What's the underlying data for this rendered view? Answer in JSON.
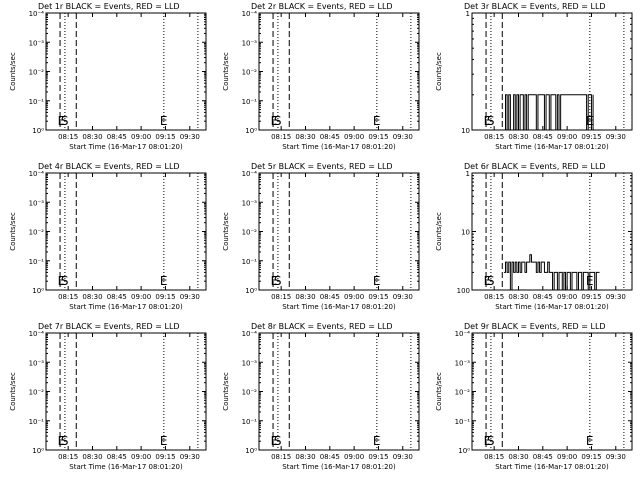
{
  "panel_grid": {
    "cols": 3,
    "rows": 3
  },
  "colors": {
    "background": "#ffffff",
    "axes": "#000000",
    "data": "#000000"
  },
  "chart_data": [
    {
      "type": "line",
      "title": "Det 1r BLACK = Events, RED = LLD",
      "xlabel": "Start Time (16-Mar-17 08:01:20)",
      "ylabel": "Counts/sec",
      "y_scale": "log",
      "y_ticks": [
        "10⁰",
        "10⁻¹",
        "10⁻²",
        "10⁻³",
        "10⁻⁴"
      ],
      "x_ticks": [
        "08:15",
        "08:30",
        "08:45",
        "09:00",
        "09:15",
        "09:30"
      ],
      "x_range": [
        "08:01:20",
        "09:40"
      ],
      "markers": [
        {
          "label": "E",
          "t": "08:11"
        },
        {
          "label": "S",
          "t": "08:13"
        },
        {
          "label": "E",
          "t": "09:14"
        }
      ],
      "dashed_lines": [
        "08:10",
        "08:20"
      ],
      "dotted_lines": [
        "08:13",
        "09:14",
        "09:35"
      ],
      "series": []
    },
    {
      "type": "line",
      "title": "Det 2r BLACK = Events, RED = LLD",
      "xlabel": "Start Time (16-Mar-17 08:01:20)",
      "ylabel": "Counts/sec",
      "y_scale": "log",
      "y_ticks": [
        "10⁰",
        "10⁻¹",
        "10⁻²",
        "10⁻³",
        "10⁻⁴"
      ],
      "x_ticks": [
        "08:15",
        "08:30",
        "08:45",
        "09:00",
        "09:15",
        "09:30"
      ],
      "x_range": [
        "08:01:20",
        "09:40"
      ],
      "markers": [
        {
          "label": "E",
          "t": "08:11"
        },
        {
          "label": "S",
          "t": "08:13"
        },
        {
          "label": "E",
          "t": "09:14"
        }
      ],
      "dashed_lines": [
        "08:10",
        "08:20"
      ],
      "dotted_lines": [
        "08:13",
        "09:14",
        "09:35"
      ],
      "series": []
    },
    {
      "type": "line",
      "title": "Det 3r BLACK = Events, RED = LLD",
      "xlabel": "Start Time (16-Mar-17 08:01:20)",
      "ylabel": "Counts/sec",
      "y_scale": "log",
      "y_ticks": [
        "10",
        "1"
      ],
      "x_ticks": [
        "08:15",
        "08:30",
        "08:45",
        "09:00",
        "09:15",
        "09:30"
      ],
      "x_range": [
        "08:01:20",
        "09:40"
      ],
      "markers": [
        {
          "label": "E",
          "t": "08:11"
        },
        {
          "label": "S",
          "t": "08:13"
        },
        {
          "label": "E",
          "t": "09:14"
        }
      ],
      "dashed_lines": [
        "08:10",
        "08:20"
      ],
      "dotted_lines": [
        "08:13",
        "09:14",
        "09:35"
      ],
      "series": [
        {
          "x": [
            "08:21",
            "08:22",
            "08:23",
            "08:24",
            "08:25",
            "08:26",
            "08:27",
            "08:28",
            "08:29",
            "08:30",
            "08:31",
            "08:32",
            "08:33",
            "08:34",
            "08:35",
            "08:36",
            "08:37",
            "08:38",
            "08:39",
            "08:40",
            "08:41",
            "08:42",
            "08:43",
            "08:44",
            "08:45",
            "08:46",
            "08:47",
            "08:48",
            "08:49",
            "08:50",
            "08:51",
            "08:52",
            "08:53",
            "08:54",
            "08:55",
            "08:56",
            "09:12",
            "09:13",
            "09:14",
            "09:15",
            "09:16"
          ],
          "values": [
            1,
            2,
            1,
            2,
            1,
            1,
            2,
            1,
            2,
            1,
            2,
            2,
            1,
            2,
            1,
            2,
            2,
            2,
            2,
            2,
            1,
            2,
            2,
            2,
            2,
            1,
            2,
            2,
            1,
            2,
            2,
            2,
            1,
            2,
            1,
            2,
            1,
            2,
            2,
            1,
            2
          ]
        }
      ]
    },
    {
      "type": "line",
      "title": "Det 4r BLACK = Events, RED = LLD",
      "xlabel": "Start Time (16-Mar-17 08:01:20)",
      "ylabel": "Counts/sec",
      "y_scale": "log",
      "y_ticks": [
        "10⁰",
        "10⁻¹",
        "10⁻²",
        "10⁻³",
        "10⁻⁴"
      ],
      "x_ticks": [
        "08:15",
        "08:30",
        "08:45",
        "09:00",
        "09:15",
        "09:30"
      ],
      "x_range": [
        "08:01:20",
        "09:40"
      ],
      "markers": [
        {
          "label": "E",
          "t": "08:11"
        },
        {
          "label": "S",
          "t": "08:13"
        },
        {
          "label": "E",
          "t": "09:14"
        }
      ],
      "dashed_lines": [
        "08:10",
        "08:20"
      ],
      "dotted_lines": [
        "08:13",
        "09:14",
        "09:35"
      ],
      "series": []
    },
    {
      "type": "line",
      "title": "Det 5r BLACK = Events, RED = LLD",
      "xlabel": "Start Time (16-Mar-17 08:01:20)",
      "ylabel": "Counts/sec",
      "y_scale": "log",
      "y_ticks": [
        "10⁰",
        "10⁻¹",
        "10⁻²",
        "10⁻³",
        "10⁻⁴"
      ],
      "x_ticks": [
        "08:15",
        "08:30",
        "08:45",
        "09:00",
        "09:15",
        "09:30"
      ],
      "x_range": [
        "08:01:20",
        "09:40"
      ],
      "markers": [
        {
          "label": "E",
          "t": "08:11"
        },
        {
          "label": "S",
          "t": "08:13"
        },
        {
          "label": "E",
          "t": "09:14"
        }
      ],
      "dashed_lines": [
        "08:10",
        "08:20"
      ],
      "dotted_lines": [
        "08:13",
        "09:14",
        "09:35"
      ],
      "series": []
    },
    {
      "type": "line",
      "title": "Det 6r BLACK = Events, RED = LLD",
      "xlabel": "Start Time (16-Mar-17 08:01:20)",
      "ylabel": "Counts/sec",
      "y_scale": "log",
      "y_ticks": [
        "100",
        "10",
        "1"
      ],
      "x_ticks": [
        "08:15",
        "08:30",
        "08:45",
        "09:00",
        "09:15",
        "09:30"
      ],
      "x_range": [
        "08:01:20",
        "09:40"
      ],
      "markers": [
        {
          "label": "E",
          "t": "08:11"
        },
        {
          "label": "S",
          "t": "08:13"
        },
        {
          "label": "E",
          "t": "09:14"
        }
      ],
      "dashed_lines": [
        "08:10",
        "08:20"
      ],
      "dotted_lines": [
        "08:13",
        "09:14",
        "09:35"
      ],
      "series": [
        {
          "x": [
            "08:21",
            "08:22",
            "08:23",
            "08:24",
            "08:25",
            "08:26",
            "08:27",
            "08:28",
            "08:29",
            "08:30",
            "08:31",
            "08:32",
            "08:33",
            "08:34",
            "08:35",
            "08:36",
            "08:37",
            "08:38",
            "08:39",
            "08:40",
            "08:41",
            "08:42",
            "08:43",
            "08:44",
            "08:45",
            "08:46",
            "08:47",
            "08:48",
            "08:49",
            "08:50",
            "08:51",
            "08:52",
            "08:53",
            "08:54",
            "08:55",
            "08:56",
            "08:57",
            "08:58",
            "08:59",
            "09:00",
            "09:01",
            "09:02",
            "09:03",
            "09:04",
            "09:05",
            "09:06",
            "09:07",
            "09:08",
            "09:09",
            "09:10",
            "09:11",
            "09:12",
            "09:13",
            "09:14",
            "09:15",
            "09:16",
            "09:17",
            "09:18",
            "09:19",
            "09:20"
          ],
          "values": [
            2,
            3,
            2,
            3,
            1,
            3,
            2,
            3,
            2,
            3,
            2,
            3,
            3,
            2,
            3,
            3,
            4,
            3,
            3,
            3,
            2,
            3,
            2,
            3,
            3,
            2,
            2,
            3,
            2,
            2,
            1,
            2,
            2,
            1,
            2,
            2,
            1,
            2,
            1,
            2,
            2,
            1,
            2,
            2,
            2,
            1,
            2,
            2,
            1,
            2,
            2,
            2,
            1,
            2,
            2,
            2,
            1,
            2,
            2,
            2
          ]
        }
      ]
    },
    {
      "type": "line",
      "title": "Det 7r BLACK = Events, RED = LLD",
      "xlabel": "Start Time (16-Mar-17 08:01:20)",
      "ylabel": "Counts/sec",
      "y_scale": "log",
      "y_ticks": [
        "10⁰",
        "10⁻¹",
        "10⁻²",
        "10⁻³",
        "10⁻⁴"
      ],
      "x_ticks": [
        "08:15",
        "08:30",
        "08:45",
        "09:00",
        "09:15",
        "09:30"
      ],
      "x_range": [
        "08:01:20",
        "09:40"
      ],
      "markers": [
        {
          "label": "E",
          "t": "08:11"
        },
        {
          "label": "S",
          "t": "08:13"
        },
        {
          "label": "E",
          "t": "09:14"
        }
      ],
      "dashed_lines": [
        "08:10",
        "08:20"
      ],
      "dotted_lines": [
        "08:13",
        "09:14",
        "09:35"
      ],
      "series": []
    },
    {
      "type": "line",
      "title": "Det 8r BLACK = Events, RED = LLD",
      "xlabel": "Start Time (16-Mar-17 08:01:20)",
      "ylabel": "Counts/sec",
      "y_scale": "log",
      "y_ticks": [
        "10⁰",
        "10⁻¹",
        "10⁻²",
        "10⁻³",
        "10⁻⁴"
      ],
      "x_ticks": [
        "08:15",
        "08:30",
        "08:45",
        "09:00",
        "09:15",
        "09:30"
      ],
      "x_range": [
        "08:01:20",
        "09:40"
      ],
      "markers": [
        {
          "label": "E",
          "t": "08:11"
        },
        {
          "label": "S",
          "t": "08:13"
        },
        {
          "label": "E",
          "t": "09:14"
        }
      ],
      "dashed_lines": [
        "08:10",
        "08:20"
      ],
      "dotted_lines": [
        "08:13",
        "09:14",
        "09:35"
      ],
      "series": []
    },
    {
      "type": "line",
      "title": "Det 9r BLACK = Events, RED = LLD",
      "xlabel": "Start Time (16-Mar-17 08:01:20)",
      "ylabel": "Counts/sec",
      "y_scale": "log",
      "y_ticks": [
        "10⁰",
        "10⁻¹",
        "10⁻²",
        "10⁻³",
        "10⁻⁴"
      ],
      "x_ticks": [
        "08:15",
        "08:30",
        "08:45",
        "09:00",
        "09:15",
        "09:30"
      ],
      "x_range": [
        "08:01:20",
        "09:40"
      ],
      "markers": [
        {
          "label": "E",
          "t": "08:11"
        },
        {
          "label": "S",
          "t": "08:13"
        },
        {
          "label": "E",
          "t": "09:14"
        }
      ],
      "dashed_lines": [
        "08:10",
        "08:20"
      ],
      "dotted_lines": [
        "08:13",
        "09:14",
        "09:35"
      ],
      "series": []
    }
  ]
}
